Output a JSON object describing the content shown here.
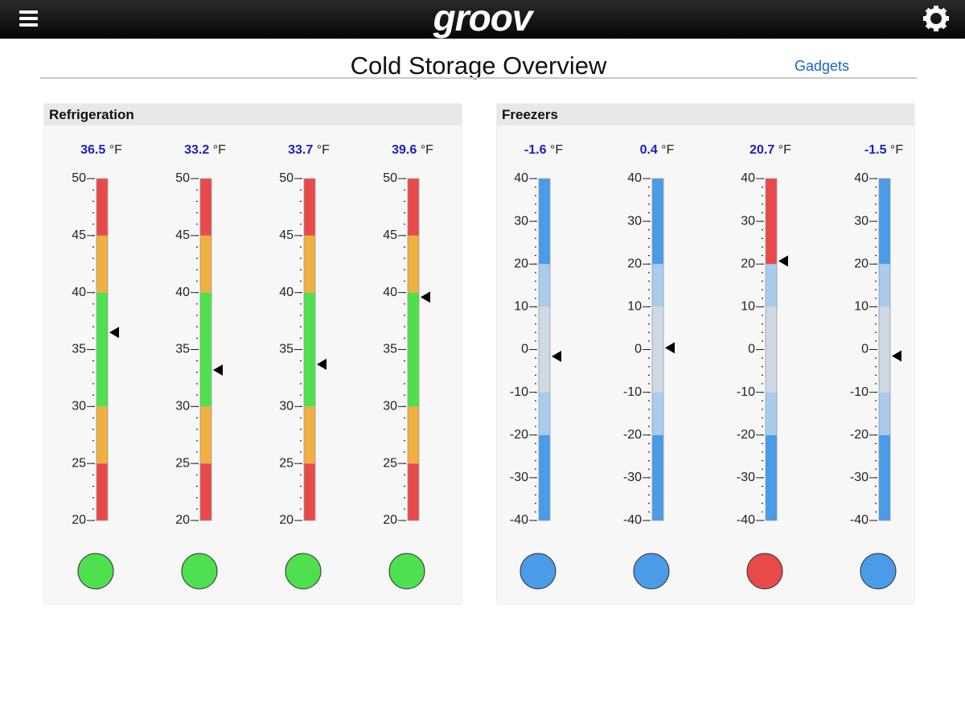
{
  "header": {
    "logo": "groov"
  },
  "title": "Cold Storage Overview",
  "link": "Gadgets",
  "panels": [
    {
      "title": "Refrigeration",
      "unit": "°F",
      "scale": {
        "min": 20,
        "max": 50,
        "ticks": [
          20,
          25,
          30,
          35,
          40,
          45,
          50
        ],
        "minor_step": 1
      },
      "zones": [
        {
          "from": 20,
          "to": 25,
          "color": "#e84a4a"
        },
        {
          "from": 25,
          "to": 30,
          "color": "#f0b040"
        },
        {
          "from": 30,
          "to": 40,
          "color": "#4ee04e"
        },
        {
          "from": 40,
          "to": 45,
          "color": "#f0b040"
        },
        {
          "from": 45,
          "to": 50,
          "color": "#e84a4a"
        }
      ],
      "gauges": [
        {
          "value": 36.5,
          "status_color": "#4ee04e"
        },
        {
          "value": 33.2,
          "status_color": "#4ee04e"
        },
        {
          "value": 33.7,
          "status_color": "#4ee04e"
        },
        {
          "value": 39.6,
          "status_color": "#4ee04e"
        }
      ]
    },
    {
      "title": "Freezers",
      "unit": "°F",
      "scale": {
        "min": -40,
        "max": 40,
        "ticks": [
          -40,
          -30,
          -20,
          -10,
          0,
          10,
          20,
          30,
          40
        ],
        "minor_step": 2
      },
      "zones": [
        {
          "from": -40,
          "to": -20,
          "color": "#4a9be8"
        },
        {
          "from": -20,
          "to": -10,
          "color": "#a9cbee"
        },
        {
          "from": -10,
          "to": 10,
          "color": "#cfd9e4"
        },
        {
          "from": 10,
          "to": 20,
          "color": "#a9cbee"
        },
        {
          "from": 20,
          "to": 40,
          "color": "#4a9be8"
        }
      ],
      "gauges": [
        {
          "value": -1.6,
          "status_color": "#4a9be8"
        },
        {
          "value": 0.4,
          "status_color": "#4a9be8"
        },
        {
          "value": 20.7,
          "status_color": "#e84a4a",
          "zones": [
            {
              "from": -40,
              "to": -20,
              "color": "#4a9be8"
            },
            {
              "from": -20,
              "to": -10,
              "color": "#a9cbee"
            },
            {
              "from": -10,
              "to": 10,
              "color": "#cfd9e4"
            },
            {
              "from": 10,
              "to": 20,
              "color": "#a9cbee"
            },
            {
              "from": 20,
              "to": 40,
              "color": "#e84a4a"
            }
          ]
        },
        {
          "value": -1.5,
          "status_color": "#4a9be8"
        }
      ]
    }
  ]
}
